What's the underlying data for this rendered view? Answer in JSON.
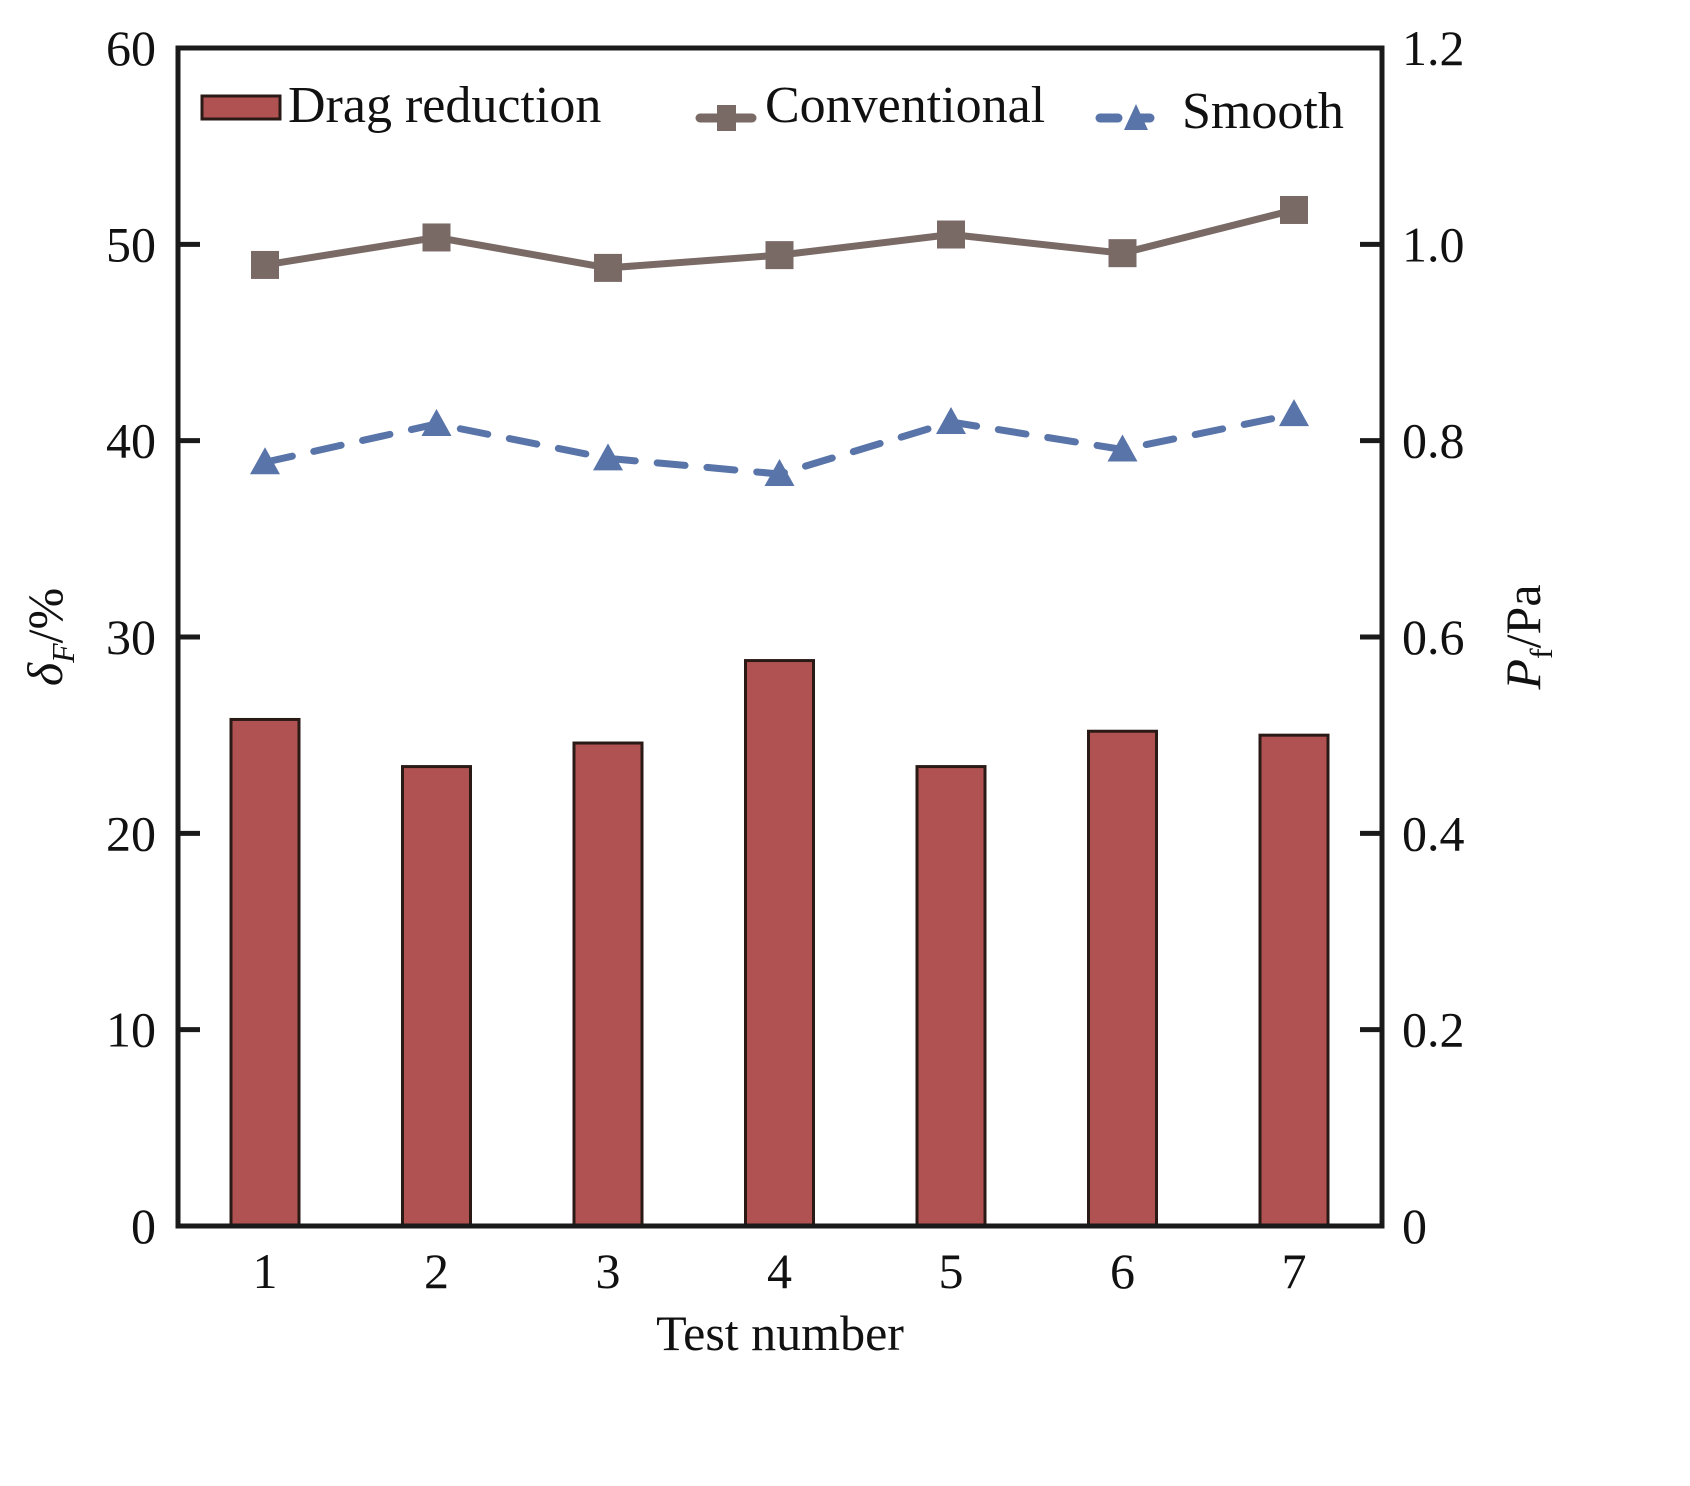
{
  "chart_data": {
    "type": "bar",
    "title": "",
    "xlabel": "Test number",
    "ylabel_left": {
      "symbol": "δ",
      "subscript": "F",
      "unit": "/%"
    },
    "ylabel_right": {
      "symbol": "P",
      "subscript": "f",
      "unit": "/Pa"
    },
    "categories": [
      "1",
      "2",
      "3",
      "4",
      "5",
      "6",
      "7"
    ],
    "ylim_left": [
      0,
      60
    ],
    "ylim_right": [
      0,
      1.2
    ],
    "yticks_left": [
      "0",
      "10",
      "20",
      "30",
      "40",
      "50",
      "60"
    ],
    "yticks_right": [
      "0",
      "0.2",
      "0.4",
      "0.6",
      "0.8",
      "1.0",
      "1.2"
    ],
    "grid": false,
    "legend_position": "top",
    "series": [
      {
        "name": "Drag reduction",
        "type": "bar",
        "axis": "left",
        "color": "#b05252",
        "edge_color": "#2a1a16",
        "values": [
          25.8,
          23.4,
          24.6,
          28.8,
          23.4,
          25.2,
          25.0
        ]
      },
      {
        "name": "Conventional",
        "type": "line",
        "axis": "right",
        "color": "#7a6a66",
        "marker": "square",
        "line_style": "solid",
        "values": [
          0.979,
          1.007,
          0.976,
          0.989,
          1.01,
          0.991,
          1.035
        ]
      },
      {
        "name": "Smooth",
        "type": "line",
        "axis": "right",
        "color": "#5874a8",
        "marker": "triangle",
        "line_style": "dashed",
        "values": [
          0.778,
          0.817,
          0.782,
          0.766,
          0.819,
          0.791,
          0.827
        ]
      }
    ]
  }
}
